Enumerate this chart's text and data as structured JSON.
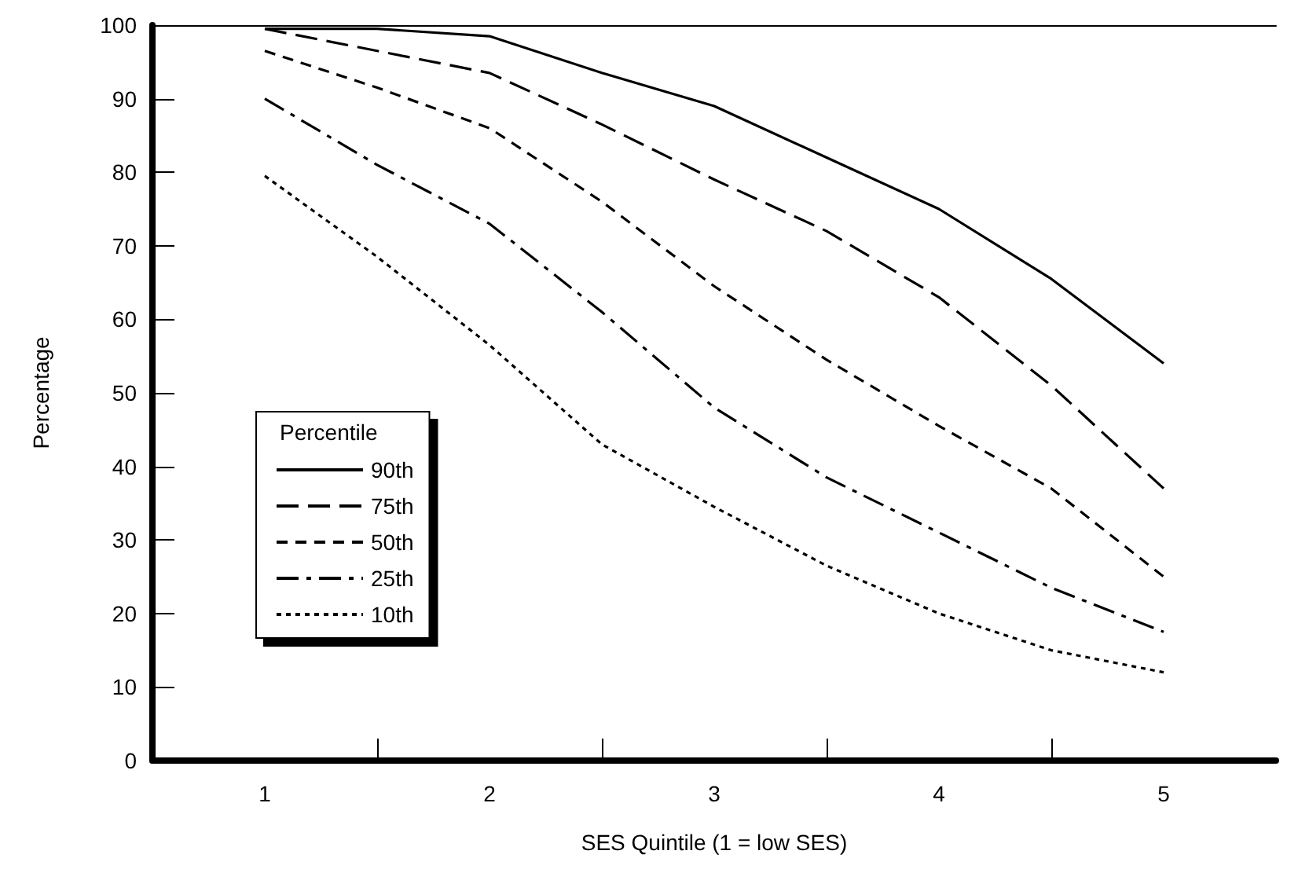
{
  "chart_data": {
    "type": "line",
    "xlabel": "SES Quintile (1 = low SES)",
    "ylabel": "Percentage",
    "legend_title": "Percentile",
    "legend": "bottom left",
    "grid": false,
    "marker": "none",
    "x": [
      1,
      1.5,
      2,
      2.5,
      3,
      3.5,
      4,
      4.5,
      5
    ],
    "xlim": [
      0.5,
      5.5
    ],
    "xticks": [
      1,
      2,
      3,
      4,
      5,
      {
        "value": 1.5,
        "label": null
      },
      {
        "value": 2.5,
        "label": null
      },
      {
        "value": 3.5,
        "label": null
      },
      {
        "value": 4.5,
        "label": null
      }
    ],
    "ylim": [
      0,
      100
    ],
    "yticks": [
      0,
      10,
      20,
      30,
      40,
      50,
      60,
      70,
      80,
      90,
      100
    ],
    "series": [
      {
        "name": "90th",
        "color": "#000000",
        "line_style": "solid",
        "values": [
          99.5,
          99.5,
          98.5,
          93.5,
          89,
          82,
          75,
          65.5,
          54
        ]
      },
      {
        "name": "75th",
        "color": "#000000",
        "line_style": "longdashed",
        "values": [
          99.5,
          96.5,
          93.5,
          86.5,
          79,
          72,
          63,
          51,
          37
        ]
      },
      {
        "name": "50th",
        "color": "#000000",
        "line_style": "dashed",
        "values": [
          96.5,
          91.5,
          86,
          76,
          64.5,
          54.5,
          45.5,
          37,
          25
        ]
      },
      {
        "name": "25th",
        "color": "#000000",
        "line_style": "dashdot",
        "values": [
          90,
          81,
          73,
          61,
          48,
          38.5,
          31,
          23.5,
          17.5
        ]
      },
      {
        "name": "10th",
        "color": "#000000",
        "line_style": "dotted",
        "values": [
          79.5,
          68.5,
          56.5,
          43,
          34.5,
          26.5,
          20,
          15,
          12
        ]
      }
    ]
  }
}
